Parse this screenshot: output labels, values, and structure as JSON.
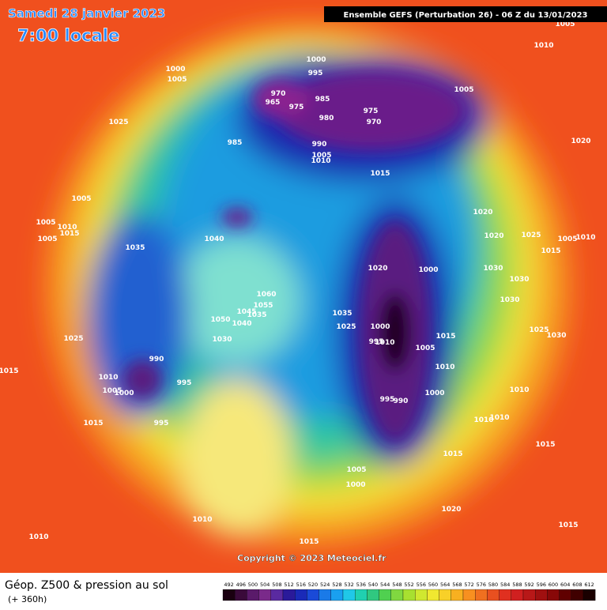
{
  "header": {
    "title": "Samedi 28 janvier 2023",
    "time": "7:00 locale",
    "run": "Ensemble GEFS  (Perturbation 26)  -  06 Z du 13/01/2023"
  },
  "footer": {
    "product": "Géop. Z500 & pression au sol",
    "lead": "(+ 360h)",
    "copyright": "Copyright © 2023 Meteociel.fr"
  },
  "colorbar": {
    "ticks": [
      492,
      496,
      500,
      504,
      508,
      512,
      516,
      520,
      524,
      528,
      532,
      536,
      540,
      544,
      548,
      552,
      556,
      560,
      564,
      568,
      572,
      576,
      580,
      584,
      588,
      592,
      596,
      600,
      604,
      608,
      612
    ]
  },
  "isobar_labels": [
    "1005",
    "1010",
    "1000",
    "1005",
    "1000",
    "995",
    "970",
    "965",
    "975",
    "985",
    "980",
    "975",
    "970",
    "1005",
    "1025",
    "1020",
    "985",
    "990",
    "1005",
    "1010",
    "1015",
    "1005",
    "1020",
    "1005",
    "1010",
    "1015",
    "1005",
    "1020",
    "1025",
    "1005",
    "1010",
    "1040",
    "1035",
    "1015",
    "1020",
    "1000",
    "1030",
    "1030",
    "1060",
    "1055",
    "1045",
    "1035",
    "1050",
    "1040",
    "1035",
    "1030",
    "1000",
    "1025",
    "1025",
    "1030",
    "1025",
    "995",
    "1010",
    "1030",
    "1015",
    "1005",
    "990",
    "1010",
    "1015",
    "1010",
    "995",
    "1005",
    "1000",
    "1000",
    "1010",
    "995",
    "990",
    "1010",
    "1010",
    "995",
    "1015",
    "1015",
    "1015",
    "1005",
    "1000",
    "1020",
    "1010",
    "1015",
    "1010",
    "1015"
  ]
}
